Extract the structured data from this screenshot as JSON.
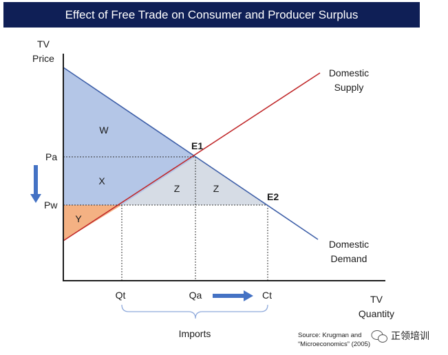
{
  "title": "Effect of Free Trade on Consumer and Producer Surplus",
  "axes": {
    "y_label_line1": "TV",
    "y_label_line2": "Price",
    "x_label_line1": "TV",
    "x_label_line2": "Quantity"
  },
  "price_ticks": {
    "pa": "Pa",
    "pw": "Pw"
  },
  "quantity_ticks": {
    "qt": "Qt",
    "qa": "Qa",
    "ct": "Ct"
  },
  "curves": {
    "supply_line1": "Domestic",
    "supply_line2": "Supply",
    "demand_line1": "Domestic",
    "demand_line2": "Demand"
  },
  "points": {
    "e1": "E1",
    "e2": "E2"
  },
  "areas": {
    "w": "W",
    "x": "X",
    "y": "Y",
    "z1": "Z",
    "z2": "Z"
  },
  "imports_label": "Imports",
  "source": {
    "line1": "Source:  Krugman and",
    "line2": "“Microeconomics” (2005)"
  },
  "watermark": "正领培训",
  "colors": {
    "title_bg": "#0f1f56",
    "demand": "#3e5fa8",
    "supply": "#c0282a",
    "consumer_surplus": "#b4c6e7",
    "producer_surplus": "#f4b183",
    "zone_z": "#d6dce5",
    "arrow": "#4472c4"
  }
}
